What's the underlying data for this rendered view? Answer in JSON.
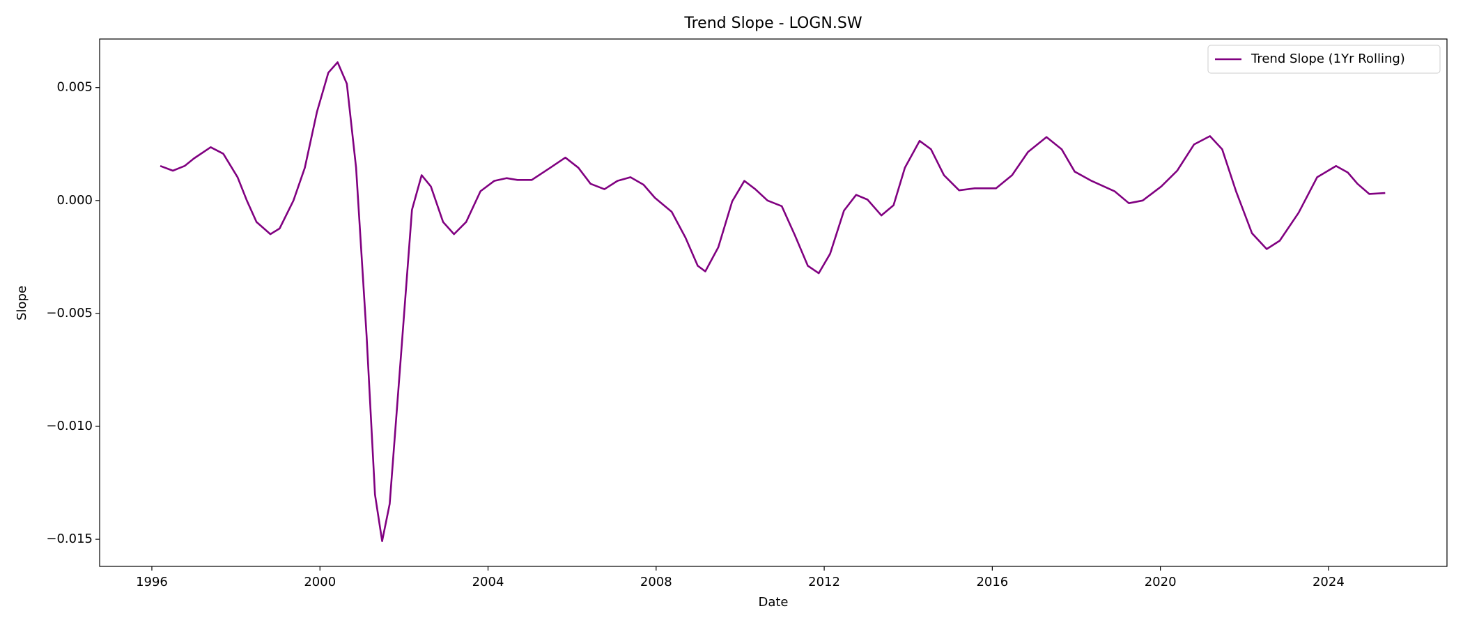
{
  "chart_data": {
    "type": "line",
    "title": "Trend Slope - LOGN.SW",
    "x_label": "Date",
    "y_label": "Slope",
    "xlim": [
      1994.757,
      2026.82
    ],
    "xticks": [
      1996,
      2000,
      2004,
      2008,
      2012,
      2016,
      2020,
      2024
    ],
    "ylim": [
      -0.0162,
      0.00715
    ],
    "yticks": [
      {
        "value": -0.015,
        "label": "−0.015"
      },
      {
        "value": -0.01,
        "label": "−0.010"
      },
      {
        "value": -0.005,
        "label": "−0.005"
      },
      {
        "value": 0,
        "label": "0.000"
      },
      0.005
    ],
    "legend": "upper right",
    "series": [
      {
        "name": "Trend Slope (1Yr Rolling)",
        "color": "#800080",
        "x": [
          1996.2,
          1996.5,
          1996.78,
          1997.0,
          1997.4,
          1997.7,
          1998.04,
          1998.26,
          1998.49,
          1998.82,
          1999.04,
          1999.37,
          1999.64,
          1999.93,
          2000.2,
          2000.42,
          2000.64,
          2000.86,
          2001.11,
          2001.31,
          2001.48,
          2001.66,
          2001.93,
          2002.19,
          2002.42,
          2002.64,
          2002.93,
          2003.19,
          2003.48,
          2003.82,
          2004.15,
          2004.44,
          2004.7,
          2005.04,
          2005.48,
          2005.84,
          2006.15,
          2006.44,
          2006.77,
          2007.08,
          2007.39,
          2007.7,
          2007.97,
          2008.37,
          2008.7,
          2008.99,
          2009.17,
          2009.48,
          2009.81,
          2010.1,
          2010.36,
          2010.65,
          2010.99,
          2011.3,
          2011.61,
          2011.87,
          2012.14,
          2012.47,
          2012.76,
          2013.03,
          2013.36,
          2013.65,
          2013.92,
          2014.27,
          2014.54,
          2014.85,
          2015.21,
          2015.58,
          2016.09,
          2016.47,
          2016.85,
          2017.29,
          2017.65,
          2017.96,
          2018.36,
          2018.91,
          2019.25,
          2019.58,
          2020.02,
          2020.4,
          2020.8,
          2021.18,
          2021.47,
          2021.8,
          2022.18,
          2022.53,
          2022.84,
          2023.29,
          2023.73,
          2024.18,
          2024.46,
          2024.69,
          2024.97,
          2025.35
        ],
        "values": [
          0.00153,
          0.00132,
          0.00153,
          0.00186,
          0.00236,
          0.00207,
          0.00103,
          0,
          -0.00095,
          -0.00149,
          -0.00124,
          0,
          0.00145,
          0.00393,
          0.00566,
          0.00612,
          0.00517,
          0.00145,
          -0.00599,
          -0.01302,
          -0.01508,
          -0.01343,
          -0.00682,
          -0.00041,
          0.00112,
          0.00062,
          -0.00095,
          -0.00149,
          -0.00095,
          0.00041,
          0.00087,
          0.00099,
          0.00091,
          0.00091,
          0.00145,
          0.0019,
          0.00145,
          0.00074,
          0.0005,
          0.00087,
          0.00103,
          0.0007,
          0.00012,
          -0.0005,
          -0.00165,
          -0.00289,
          -0.00314,
          -0.00207,
          -4e-05,
          0.00087,
          0.0005,
          0,
          -0.00025,
          -0.00153,
          -0.00289,
          -0.00322,
          -0.00236,
          -0.00045,
          0.00025,
          4e-05,
          -0.00066,
          -0.00021,
          0.00145,
          0.00264,
          0.00227,
          0.00112,
          0.00045,
          0.00054,
          0.00054,
          0.00112,
          0.00215,
          0.00281,
          0.00227,
          0.00128,
          0.00087,
          0.00041,
          -0.00012,
          0,
          0.00062,
          0.00132,
          0.00248,
          0.00285,
          0.00227,
          0.00041,
          -0.00145,
          -0.00215,
          -0.00178,
          -0.00054,
          0.00103,
          0.00153,
          0.00124,
          0.00074,
          0.00029,
          0.00033
        ]
      }
    ]
  }
}
